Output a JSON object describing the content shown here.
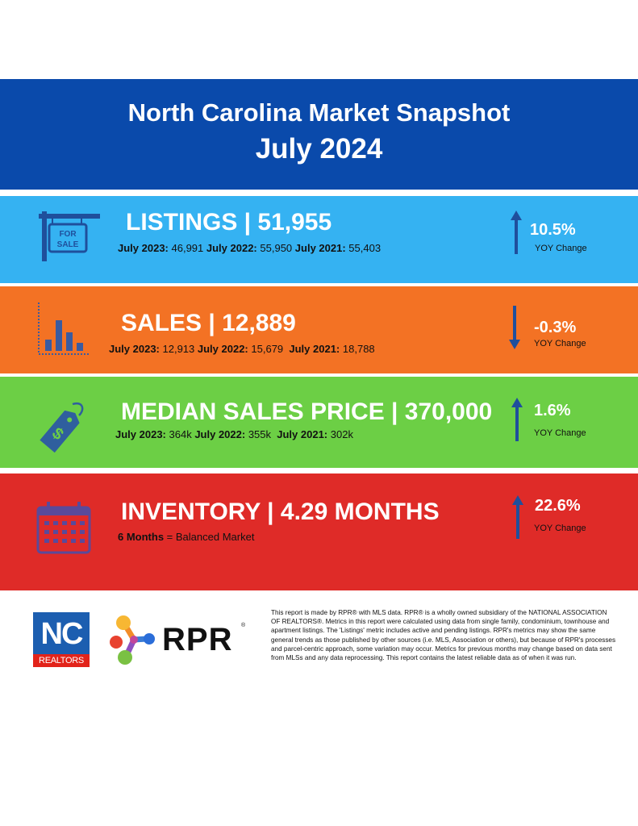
{
  "header": {
    "title": "North Carolina Market Snapshot",
    "subtitle": "July 2024",
    "bg_color": "#0a4aab"
  },
  "listings": {
    "icon": "for-sale-sign-icon",
    "sign_line1": "FOR",
    "sign_line2": "SALE",
    "heading": "LISTINGS | 51,955",
    "history": [
      {
        "label": "July 2023:",
        "value": "46,991"
      },
      {
        "label": "July 2022:",
        "value": "55,950"
      },
      {
        "label": "July 2021:",
        "value": "55,403"
      }
    ],
    "change": "10.5%",
    "change_direction": "up",
    "change_label": "YOY Change",
    "color": "#35b2f2"
  },
  "sales": {
    "icon": "bar-chart-icon",
    "heading": "SALES | 12,889",
    "history": [
      {
        "label": "July 2023:",
        "value": "12,913"
      },
      {
        "label": "July 2022:",
        "value": "15,679"
      },
      {
        "label": "July 2021:",
        "value": "18,788"
      }
    ],
    "change": "-0.3%",
    "change_direction": "down",
    "change_label": "YOY Change",
    "color": "#f37224"
  },
  "price": {
    "icon": "price-tag-icon",
    "heading": "MEDIAN SALES PRICE | 370,000",
    "history": [
      {
        "label": "July 2023:",
        "value": "364k"
      },
      {
        "label": "July 2022:",
        "value": "355k"
      },
      {
        "label": "July 2021:",
        "value": "302k"
      }
    ],
    "change": "1.6%",
    "change_direction": "up",
    "change_label": "YOY Change",
    "color": "#6ccf45"
  },
  "inventory": {
    "icon": "calendar-icon",
    "heading": "INVENTORY | 4.29 MONTHS",
    "note_bold": "6 Months",
    "note_rest": " = Balanced Market",
    "change": "22.6%",
    "change_direction": "up",
    "change_label": "YOY Change",
    "color": "#df2b28"
  },
  "footer": {
    "nc_logo_top": "NC",
    "nc_logo_bottom": "REALTORS",
    "rpr_logo": "RPR",
    "rpr_reg": "®",
    "disclaimer": "This report is made by RPR® with MLS data. RPR® is a wholly owned subsidiary of the NATIONAL ASSOCIATION OF REALTORS®. Metrics in this report were calculated using data from single family, condominium, townhouse and apartment listings. The 'Listings' metric includes active and pending listings. RPR's metrics may show the same general trends as those published by other sources (i.e. MLS, Association or others), but because of RPR's processes and parcel-centric approach, some variation may occur. Metrics for previous months may change based on data sent from MLSs and any data reprocessing. This report contains the latest reliable data as of when it was run."
  }
}
